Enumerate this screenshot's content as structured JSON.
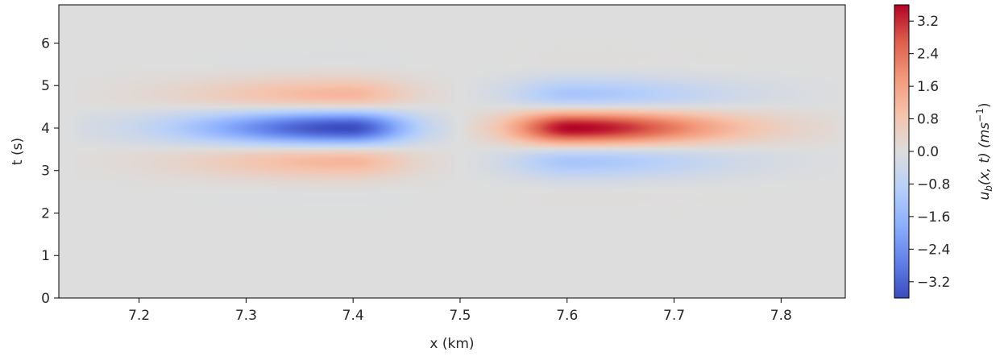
{
  "chart_data": {
    "type": "heatmap",
    "title": "",
    "xlabel": "x (km)",
    "ylabel": "t (s)",
    "xlim": [
      7.125,
      7.86
    ],
    "ylim": [
      0,
      6.9
    ],
    "xticks": [
      7.2,
      7.3,
      7.4,
      7.5,
      7.6,
      7.7,
      7.8
    ],
    "xtick_labels": [
      "7.2",
      "7.3",
      "7.4",
      "7.5",
      "7.6",
      "7.7",
      "7.8"
    ],
    "yticks": [
      0,
      1,
      2,
      3,
      4,
      5,
      6
    ],
    "ytick_labels": [
      "0",
      "1",
      "2",
      "3",
      "4",
      "5",
      "6"
    ],
    "colormap": "coolwarm",
    "grid": false,
    "colorbar": {
      "label_main": "u",
      "label_sub": "b",
      "label_rest": "(x, t) (ms",
      "label_sup": "−1",
      "label_end": ")",
      "range": [
        -3.6,
        3.6
      ],
      "ticks": [
        3.2,
        2.4,
        1.6,
        0.8,
        0.0,
        -0.8,
        -1.6,
        -2.4,
        -3.2
      ],
      "tick_labels": [
        "3.2",
        "2.4",
        "1.6",
        "0.8",
        "0.0",
        "−0.8",
        "−1.6",
        "−2.4",
        "−3.2"
      ]
    },
    "field": {
      "description_of_structure": "two wave packets: x<7.5 negative core at t=4 with positive side lobes at t=3 and t=5; x>7.5 positive core at t=4 with negative side lobes",
      "left_packet": {
        "x_start": 7.135,
        "x_end": 7.5,
        "x_peak": 7.395,
        "sign": -1,
        "peak": -3.6
      },
      "right_packet": {
        "x_start": 7.5,
        "x_end": 7.86,
        "x_peak": 7.605,
        "sign": 1,
        "peak": 3.6
      },
      "t_center": 4.0,
      "lobe_period_s": 2.0,
      "side_lobe_ratio": 0.45
    }
  }
}
